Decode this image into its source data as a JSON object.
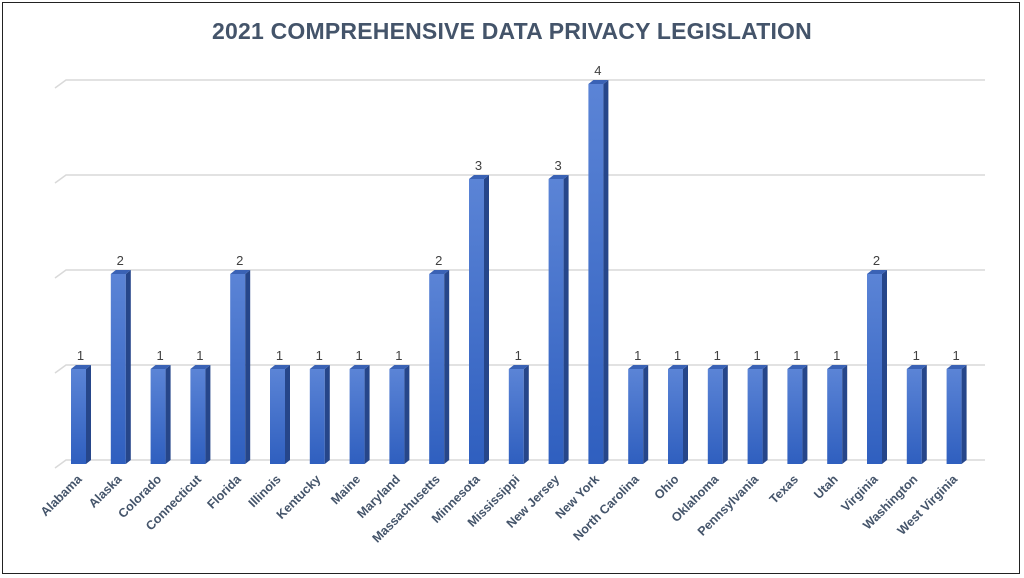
{
  "chart_data": {
    "type": "bar",
    "title": "2021 COMPREHENSIVE DATA PRIVACY LEGISLATION",
    "xlabel": "",
    "ylabel": "",
    "ylim": [
      0,
      4
    ],
    "grid": true,
    "legend": "none",
    "bar_color": "#4472c4",
    "categories": [
      "Alabama",
      "Alaska",
      "Colorado",
      "Connecticut",
      "Florida",
      "Illinois",
      "Kentucky",
      "Maine",
      "Maryland",
      "Massachusetts",
      "Minnesota",
      "Mississippi",
      "New Jersey",
      "New York",
      "North Carolina",
      "Ohio",
      "Oklahoma",
      "Pennsylvania",
      "Texas",
      "Utah",
      "Virginia",
      "Washington",
      "West Virginia"
    ],
    "values": [
      1,
      2,
      1,
      1,
      2,
      1,
      1,
      1,
      1,
      2,
      3,
      1,
      3,
      4,
      1,
      1,
      1,
      1,
      1,
      1,
      2,
      1,
      1
    ]
  }
}
